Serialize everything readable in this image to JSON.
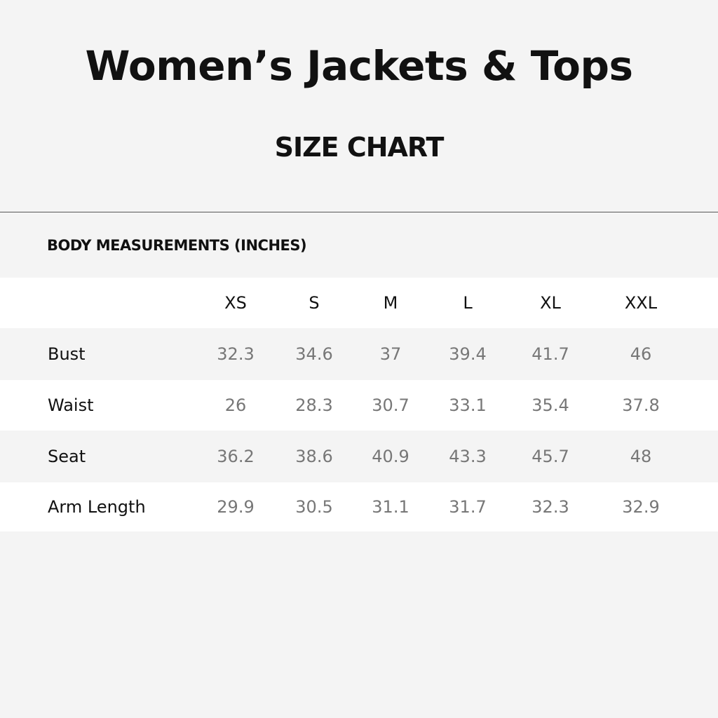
{
  "title": "Women’s Jackets & Tops",
  "subtitle": "SIZE CHART",
  "section_label": "BODY MEASUREMENTS (INCHES)",
  "table": {
    "sizes": [
      "XS",
      "S",
      "M",
      "L",
      "XL",
      "XXL"
    ],
    "rows": [
      {
        "label": "Bust",
        "values": [
          "32.3",
          "34.6",
          "37",
          "39.4",
          "41.7",
          "46"
        ]
      },
      {
        "label": "Waist",
        "values": [
          "26",
          "28.3",
          "30.7",
          "33.1",
          "35.4",
          "37.8"
        ]
      },
      {
        "label": "Seat",
        "values": [
          "36.2",
          "38.6",
          "40.9",
          "43.3",
          "45.7",
          "48"
        ]
      },
      {
        "label": "Arm Length",
        "values": [
          "29.9",
          "30.5",
          "31.1",
          "31.7",
          "32.3",
          "32.9"
        ]
      }
    ]
  }
}
